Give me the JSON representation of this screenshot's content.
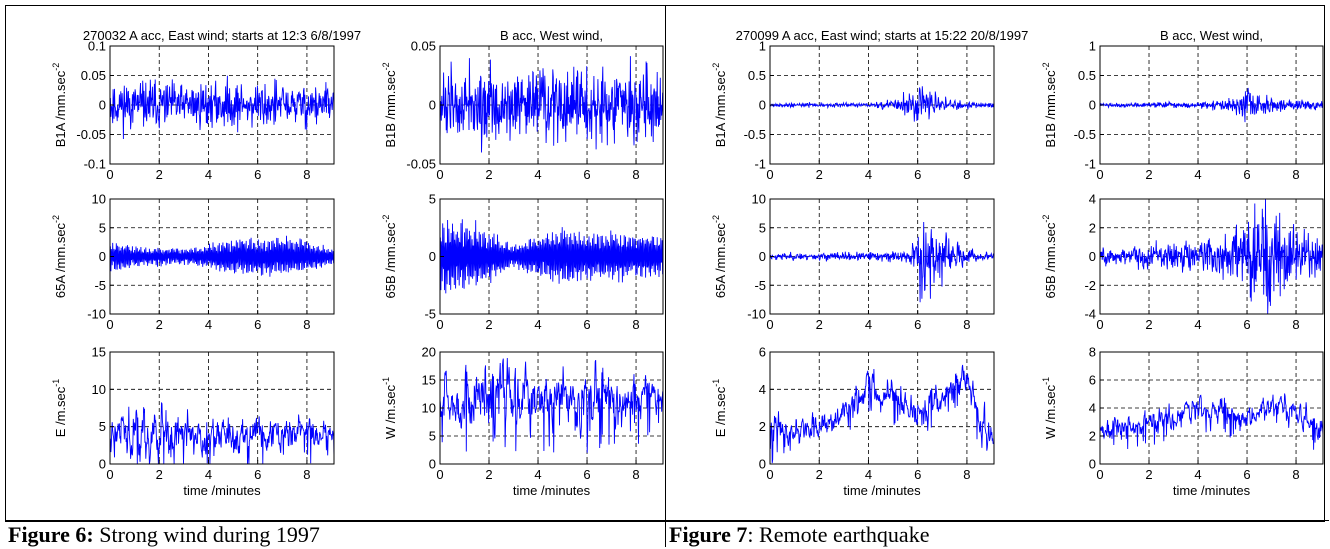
{
  "captions": [
    {
      "label": "Figure 6:",
      "text": " Strong wind during 1997"
    },
    {
      "label": "Figure 7",
      "text": ": Remote earthquake"
    }
  ],
  "style": {
    "line_color": "#0000ff",
    "axis_color": "#000000",
    "grid_style": "dashed"
  },
  "chart_data": [
    {
      "figure": "Figure 6",
      "type": "line",
      "grid": true,
      "xlabel": "time /minutes",
      "xlim": [
        0,
        9.1
      ],
      "xticks": [
        0,
        2,
        4,
        6,
        8
      ],
      "panels": [
        {
          "title": "270032 A acc, East wind; starts at 12:3 6/8/1997",
          "ylabel": "B1A /mm.sec",
          "ylabel_sup": "-2",
          "ylim": [
            -0.1,
            0.1
          ],
          "yticks": [
            -0.1,
            -0.05,
            0,
            0.05,
            0.1
          ],
          "ytick_labels": [
            "-0.1",
            "-0.05",
            "0",
            "0.05",
            "0.1"
          ],
          "signal": {
            "kind": "noise",
            "base": 0.0,
            "amp": [
              [
                0,
                0.027
              ],
              [
                9.1,
                0.027
              ]
            ],
            "seed": 11
          }
        },
        {
          "title": "B acc, West wind,",
          "ylabel": "B1B /mm.sec",
          "ylabel_sup": "-2",
          "ylim": [
            -0.05,
            0.05
          ],
          "yticks": [
            -0.05,
            0,
            0.05
          ],
          "ytick_labels": [
            "-0.05",
            "0",
            "0.05"
          ],
          "signal": {
            "kind": "noise",
            "base": 0.0,
            "amp": [
              [
                0,
                0.022
              ],
              [
                9.1,
                0.022
              ]
            ],
            "seed": 12
          }
        },
        {
          "title": "",
          "ylabel": "65A /mm.sec",
          "ylabel_sup": "-2",
          "ylim": [
            -10,
            10
          ],
          "yticks": [
            -10,
            -5,
            0,
            5,
            10
          ],
          "ytick_labels": [
            "-10",
            "-5",
            "0",
            "5",
            "10"
          ],
          "signal": {
            "kind": "osc",
            "base": 0.0,
            "amp": [
              [
                0,
                3.0
              ],
              [
                1,
                1.8
              ],
              [
                2,
                1.5
              ],
              [
                3,
                1.5
              ],
              [
                4,
                2.0
              ],
              [
                5,
                3.2
              ],
              [
                6,
                3.0
              ],
              [
                7,
                3.4
              ],
              [
                8,
                3.0
              ],
              [
                9.1,
                1.3
              ]
            ],
            "seed": 13
          }
        },
        {
          "title": "",
          "ylabel": "65B /mm.sec",
          "ylabel_sup": "-2",
          "ylim": [
            -5,
            5
          ],
          "yticks": [
            -5,
            0,
            5
          ],
          "ytick_labels": [
            "-5",
            "0",
            "5"
          ],
          "signal": {
            "kind": "osc",
            "base": 0.0,
            "amp": [
              [
                0,
                3.2
              ],
              [
                1,
                3.0
              ],
              [
                2,
                2.2
              ],
              [
                3,
                1.0
              ],
              [
                4,
                1.8
              ],
              [
                5,
                2.6
              ],
              [
                6,
                2.0
              ],
              [
                7,
                2.2
              ],
              [
                8,
                2.0
              ],
              [
                9.1,
                1.8
              ]
            ],
            "seed": 14
          }
        },
        {
          "title": "",
          "ylabel": "E /m.sec",
          "ylabel_sup": "-1",
          "ylim": [
            0,
            15
          ],
          "yticks": [
            0,
            5,
            10,
            15
          ],
          "ytick_labels": [
            "0",
            "5",
            "10",
            "15"
          ],
          "signal": {
            "kind": "speed",
            "base": 4.0,
            "amp": [
              [
                0,
                1.8
              ],
              [
                2,
                2.2
              ],
              [
                4,
                1.6
              ],
              [
                6,
                1.4
              ],
              [
                9.1,
                1.2
              ]
            ],
            "seed": 15
          }
        },
        {
          "title": "",
          "ylabel": "W /m.sec",
          "ylabel_sup": "-1",
          "ylim": [
            0,
            20
          ],
          "yticks": [
            0,
            5,
            10,
            15,
            20
          ],
          "ytick_labels": [
            "0",
            "5",
            "10",
            "15",
            "20"
          ],
          "signal": {
            "kind": "speed",
            "base": 11.5,
            "amp": [
              [
                0,
                2.5
              ],
              [
                2,
                3.5
              ],
              [
                4,
                2.8
              ],
              [
                6,
                2.8
              ],
              [
                9.1,
                2.0
              ]
            ],
            "seed": 16
          }
        }
      ]
    },
    {
      "figure": "Figure 7",
      "type": "line",
      "grid": true,
      "xlabel": "time /minutes",
      "xlim": [
        0,
        9.1
      ],
      "xticks": [
        0,
        2,
        4,
        6,
        8
      ],
      "panels": [
        {
          "title": "270099 A acc, East wind; starts at 15:22 20/8/1997",
          "ylabel": "B1A /mm.sec",
          "ylabel_sup": "-2",
          "ylim": [
            -1,
            1
          ],
          "yticks": [
            -1,
            -0.5,
            0,
            0.5,
            1
          ],
          "ytick_labels": [
            "-1",
            "-0.5",
            "0",
            "0.5",
            "1"
          ],
          "signal": {
            "kind": "quake",
            "base": 0.0,
            "amp": [
              [
                0,
                0.02
              ],
              [
                4,
                0.03
              ],
              [
                5.2,
                0.07
              ],
              [
                6,
                0.25
              ],
              [
                6.4,
                0.2
              ],
              [
                7,
                0.08
              ],
              [
                8,
                0.04
              ],
              [
                9.1,
                0.03
              ]
            ],
            "seed": 21
          }
        },
        {
          "title": "B acc, West wind,",
          "ylabel": "B1B /mm.sec",
          "ylabel_sup": "-2",
          "ylim": [
            -1,
            1
          ],
          "yticks": [
            -1,
            -0.5,
            0,
            0.5,
            1
          ],
          "ytick_labels": [
            "-1",
            "-0.5",
            "0",
            "0.5",
            "1"
          ],
          "signal": {
            "kind": "quake",
            "base": 0.0,
            "amp": [
              [
                0,
                0.02
              ],
              [
                4,
                0.04
              ],
              [
                5.2,
                0.07
              ],
              [
                6,
                0.22
              ],
              [
                6.4,
                0.14
              ],
              [
                7,
                0.08
              ],
              [
                8,
                0.06
              ],
              [
                9.1,
                0.05
              ]
            ],
            "seed": 22
          }
        },
        {
          "title": "",
          "ylabel": "65A /mm.sec",
          "ylabel_sup": "-2",
          "ylim": [
            -10,
            10
          ],
          "yticks": [
            -10,
            -5,
            0,
            5,
            10
          ],
          "ytick_labels": [
            "-10",
            "-5",
            "0",
            "5",
            "10"
          ],
          "signal": {
            "kind": "quake",
            "base": 0.0,
            "amp": [
              [
                0,
                0.4
              ],
              [
                4,
                0.5
              ],
              [
                5.6,
                0.7
              ],
              [
                6.2,
                5.5
              ],
              [
                6.8,
                3.5
              ],
              [
                7.6,
                1.5
              ],
              [
                8.5,
                0.7
              ],
              [
                9.1,
                0.5
              ]
            ],
            "seed": 23
          }
        },
        {
          "title": "",
          "ylabel": "65B /mm.sec",
          "ylabel_sup": "-2",
          "ylim": [
            -4,
            4
          ],
          "yticks": [
            -4,
            -2,
            0,
            2,
            4
          ],
          "ytick_labels": [
            "-4",
            "-2",
            "0",
            "2",
            "4"
          ],
          "signal": {
            "kind": "quake",
            "base": 0.0,
            "amp": [
              [
                0,
                0.5
              ],
              [
                3,
                0.6
              ],
              [
                5,
                1.0
              ],
              [
                6,
                1.6
              ],
              [
                6.8,
                2.8
              ],
              [
                7.5,
                1.8
              ],
              [
                8.5,
                1.2
              ],
              [
                9.1,
                1.0
              ]
            ],
            "seed": 24
          }
        },
        {
          "title": "",
          "ylabel": "E /m.sec",
          "ylabel_sup": "-1",
          "ylim": [
            0,
            6
          ],
          "yticks": [
            0,
            2,
            4,
            6
          ],
          "ytick_labels": [
            "0",
            "2",
            "4",
            "6"
          ],
          "signal": {
            "kind": "speed",
            "base": [
              [
                0,
                1.7
              ],
              [
                2,
                1.8
              ],
              [
                3,
                2.8
              ],
              [
                4,
                4.2
              ],
              [
                5,
                3.8
              ],
              [
                6,
                2.5
              ],
              [
                7,
                3.6
              ],
              [
                8,
                4.6
              ],
              [
                8.6,
                2.0
              ],
              [
                9.1,
                1.6
              ]
            ],
            "amp": [
              [
                0,
                0.5
              ],
              [
                9.1,
                0.5
              ]
            ],
            "seed": 25
          }
        },
        {
          "title": "",
          "ylabel": "W /m.sec",
          "ylabel_sup": "-1",
          "ylim": [
            0,
            8
          ],
          "yticks": [
            0,
            2,
            4,
            6,
            8
          ],
          "ytick_labels": [
            "0",
            "2",
            "4",
            "6",
            "8"
          ],
          "signal": {
            "kind": "speed",
            "base": [
              [
                0,
                2.6
              ],
              [
                2,
                2.9
              ],
              [
                3,
                3.3
              ],
              [
                4,
                4.0
              ],
              [
                5,
                3.8
              ],
              [
                6,
                3.3
              ],
              [
                7,
                4.4
              ],
              [
                8,
                3.8
              ],
              [
                9.1,
                2.2
              ]
            ],
            "amp": [
              [
                0,
                0.5
              ],
              [
                9.1,
                0.5
              ]
            ],
            "seed": 26
          }
        }
      ]
    }
  ]
}
